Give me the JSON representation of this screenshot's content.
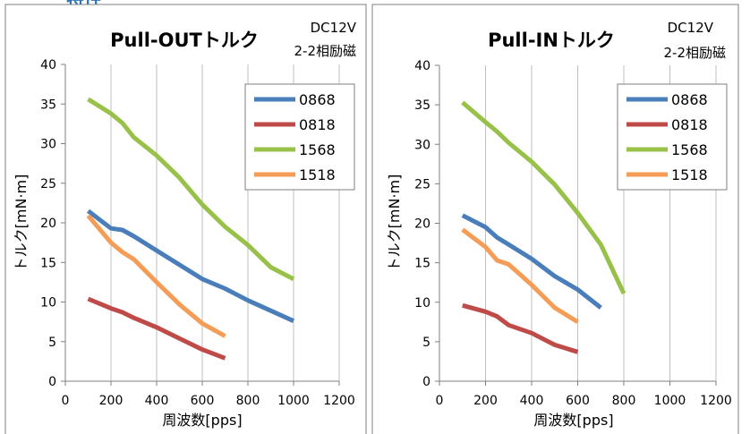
{
  "page": {
    "header_fragment": "特性"
  },
  "chart_data": [
    {
      "type": "line",
      "title": "Pull-OUTトルク",
      "condition_voltage": "DC12V",
      "condition_excitation": "2-2相励磁",
      "xlabel": "周波数[pps]",
      "ylabel": "トルク[mN·m]",
      "xlim": [
        0,
        1200
      ],
      "ylim": [
        0,
        40
      ],
      "xticks": [
        0,
        200,
        400,
        600,
        800,
        1000,
        1200
      ],
      "yticks": [
        0,
        5,
        10,
        15,
        20,
        25,
        30,
        35,
        40
      ],
      "grid": "vertical",
      "legend_position": "top-right",
      "series": [
        {
          "name": "0868",
          "color": "#4a7ebb",
          "x": [
            100,
            200,
            250,
            300,
            400,
            500,
            600,
            700,
            800,
            900,
            1000
          ],
          "y": [
            21.5,
            19.3,
            19.1,
            18.3,
            16.5,
            14.7,
            12.9,
            11.7,
            10.2,
            8.9,
            7.6
          ]
        },
        {
          "name": "0818",
          "color": "#be4b48",
          "x": [
            100,
            200,
            250,
            300,
            400,
            500,
            600,
            700
          ],
          "y": [
            10.4,
            9.2,
            8.7,
            8.0,
            6.8,
            5.4,
            4.0,
            2.9
          ]
        },
        {
          "name": "1568",
          "color": "#98c149",
          "x": [
            100,
            200,
            250,
            300,
            400,
            500,
            600,
            700,
            800,
            900,
            1000
          ],
          "y": [
            35.6,
            33.8,
            32.6,
            30.8,
            28.5,
            25.7,
            22.3,
            19.5,
            17.2,
            14.4,
            12.9
          ]
        },
        {
          "name": "1518",
          "color": "#f59d56",
          "x": [
            100,
            200,
            250,
            300,
            400,
            500,
            600,
            700
          ],
          "y": [
            20.9,
            17.5,
            16.3,
            15.4,
            12.5,
            9.7,
            7.3,
            5.7
          ]
        }
      ]
    },
    {
      "type": "line",
      "title": "Pull-INトルク",
      "condition_voltage": "DC12V",
      "condition_excitation": "2-2相励磁",
      "xlabel": "周波数[pps]",
      "ylabel": "トルク[mN·m]",
      "xlim": [
        0,
        1200
      ],
      "ylim": [
        0,
        40
      ],
      "xticks": [
        0,
        200,
        400,
        600,
        800,
        1000,
        1200
      ],
      "yticks": [
        0,
        5,
        10,
        15,
        20,
        25,
        30,
        35,
        40
      ],
      "grid": "vertical",
      "legend_position": "top-right",
      "series": [
        {
          "name": "0868",
          "color": "#4a7ebb",
          "x": [
            100,
            200,
            250,
            300,
            400,
            500,
            600,
            700
          ],
          "y": [
            21.0,
            19.5,
            18.2,
            17.3,
            15.5,
            13.3,
            11.6,
            9.3
          ]
        },
        {
          "name": "0818",
          "color": "#be4b48",
          "x": [
            100,
            200,
            250,
            300,
            400,
            500,
            600
          ],
          "y": [
            9.6,
            8.8,
            8.2,
            7.1,
            6.1,
            4.6,
            3.7
          ]
        },
        {
          "name": "1568",
          "color": "#98c149",
          "x": [
            100,
            200,
            250,
            300,
            400,
            500,
            600,
            700,
            800
          ],
          "y": [
            35.3,
            32.8,
            31.6,
            30.2,
            27.8,
            24.9,
            21.3,
            17.3,
            11.1
          ]
        },
        {
          "name": "1518",
          "color": "#f59d56",
          "x": [
            100,
            200,
            250,
            300,
            400,
            500,
            600
          ],
          "y": [
            19.2,
            17.0,
            15.3,
            14.8,
            12.2,
            9.3,
            7.5
          ]
        }
      ]
    }
  ]
}
